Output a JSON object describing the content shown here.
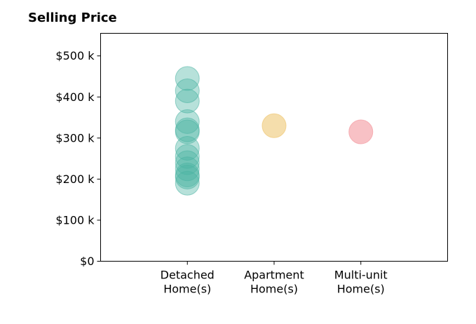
{
  "chart_data": {
    "type": "scatter",
    "title": "Selling Price",
    "xlabel": "",
    "ylabel": "",
    "categories": [
      "Detached\nHome(s)",
      "Apartment\nHome(s)",
      "Multi-unit\nHome(s)"
    ],
    "xlim": [
      -1,
      3
    ],
    "ylim": [
      0,
      555000
    ],
    "yticks": [
      0,
      100000,
      200000,
      300000,
      400000,
      500000
    ],
    "ytick_labels": [
      "$0",
      "$100 k",
      "$200 k",
      "$300 k",
      "$400 k",
      "$500 k"
    ],
    "grid": false,
    "legend": "none",
    "series": [
      {
        "category": 0,
        "color": "#4bb3a3",
        "opacity": 0.4,
        "values": [
          445000,
          415000,
          390000,
          340000,
          320000,
          315000,
          275000,
          255000,
          240000,
          225000,
          210000,
          205000,
          190000
        ]
      },
      {
        "category": 1,
        "color": "#f0cc7f",
        "opacity": 0.65,
        "values": [
          330000
        ]
      },
      {
        "category": 2,
        "color": "#f5a6ac",
        "opacity": 0.7,
        "values": [
          315000
        ]
      }
    ]
  }
}
